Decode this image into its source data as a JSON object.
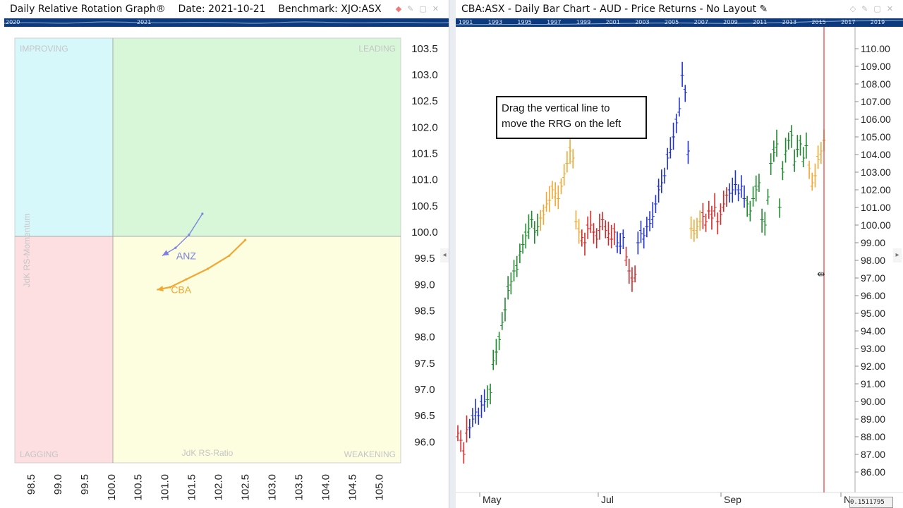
{
  "left": {
    "title": "Daily Relative Rotation Graph®",
    "date": "Date: 2021-10-21",
    "benchmark": "Benchmark: XJO:ASX",
    "timeline_labels": [
      "2020",
      "2021"
    ],
    "quadrants": {
      "improving": "IMPROVING",
      "leading": "LEADING",
      "lagging": "LAGGING",
      "weakening": "WEAKENING"
    },
    "y_axis_title": "JdK RS-Momentum",
    "x_axis_title": "JdK RS-Ratio",
    "colors": {
      "improving": "#d6f8fb",
      "leading": "#d8f7d8",
      "lagging": "#fddfe1",
      "weakening": "#fdfde0"
    }
  },
  "right": {
    "title": "CBA:ASX - Daily Bar Chart - AUD - Price Returns - No Layout",
    "timeline_labels": [
      "1991",
      "1993",
      "1995",
      "1997",
      "1999",
      "2001",
      "2003",
      "2005",
      "2007",
      "2009",
      "2011",
      "2013",
      "2015",
      "2017",
      "2019"
    ],
    "callout_line1": "Drag the vertical line to",
    "callout_line2": "move the RRG on the left",
    "status_value": "0.1511795",
    "colors": {
      "up": "#1f8a2e",
      "down": "#d12a2a",
      "improving": "#2233cc",
      "weakening": "#f0a832",
      "vline": "#e23a3a"
    }
  },
  "chart_data": [
    {
      "type": "scatter",
      "title": "",
      "xlabel": "JdK RS-Ratio",
      "ylabel": "JdK RS-Momentum",
      "xlim": [
        98.2,
        105.4
      ],
      "ylim": [
        95.6,
        103.7
      ],
      "x_ticks": [
        "98.5",
        "99.0",
        "99.5",
        "100.0",
        "100.5",
        "101.0",
        "101.5",
        "102.0",
        "102.5",
        "103.0",
        "103.5",
        "104.0",
        "104.5",
        "105.0"
      ],
      "y_ticks": [
        "96.0",
        "96.5",
        "97.0",
        "97.5",
        "98.0",
        "98.5",
        "99.0",
        "99.5",
        "100.0",
        "100.5",
        "101.0",
        "101.5",
        "102.0",
        "102.5",
        "103.0",
        "103.5"
      ],
      "series": [
        {
          "name": "ANZ",
          "color": "#7b82e0",
          "x": [
            101.7,
            101.45,
            101.2,
            100.95
          ],
          "y": [
            100.35,
            99.95,
            99.7,
            99.55
          ]
        },
        {
          "name": "CBA",
          "color": "#f0a832",
          "x": [
            102.5,
            102.2,
            101.8,
            101.4,
            101.1,
            100.85
          ],
          "y": [
            99.85,
            99.55,
            99.3,
            99.1,
            98.95,
            98.9
          ]
        }
      ],
      "grid": false
    },
    {
      "type": "bar",
      "title": "",
      "ylim": [
        85.6,
        110.6
      ],
      "y_ticks": [
        "86.00",
        "87.00",
        "88.00",
        "89.00",
        "90.00",
        "91.00",
        "92.00",
        "93.00",
        "94.00",
        "95.00",
        "96.00",
        "97.00",
        "98.00",
        "99.00",
        "100.00",
        "101.00",
        "102.00",
        "103.00",
        "104.00",
        "105.00",
        "106.00",
        "107.00",
        "108.00",
        "109.00",
        "110.00"
      ],
      "x_ticks": [
        "May",
        "Jul",
        "Sep",
        "N"
      ],
      "segments": [
        {
          "color": "down",
          "values": [
            88.2,
            87.8,
            87.0,
            88.4
          ]
        },
        {
          "color": "improving",
          "values": [
            88.5,
            89.0,
            89.4,
            89.2,
            89.8,
            90.0
          ]
        },
        {
          "color": "up",
          "values": [
            90.1,
            90.5,
            92.3,
            92.8,
            93.5,
            94.5,
            95.2,
            96.3,
            96.8,
            97.4,
            97.5,
            98.5,
            98.9,
            99.4,
            99.8,
            100.3,
            99.6,
            99.9
          ]
        },
        {
          "color": "weakening",
          "values": [
            100.4,
            100.6,
            101.2,
            101.4,
            102.0,
            101.8,
            101.5,
            102.2,
            102.9,
            103.5,
            104.2,
            103.8,
            100.2,
            99.6
          ]
        },
        {
          "color": "down",
          "values": [
            99.3,
            99.0,
            99.8,
            100.0,
            99.6,
            99.2,
            99.9,
            100.3,
            99.7,
            99.5,
            99.2,
            99.6
          ]
        },
        {
          "color": "improving",
          "values": [
            99.0,
            98.8,
            99.3
          ]
        },
        {
          "color": "down",
          "values": [
            98.2,
            97.4,
            96.8,
            97.2
          ]
        },
        {
          "color": "improving",
          "values": [
            99.0,
            99.5,
            99.4,
            99.9,
            100.1,
            100.5,
            101.2,
            102.0,
            102.4,
            102.8,
            103.8,
            104.3,
            105.0,
            105.8,
            106.6,
            108.5,
            107.5,
            104.2
          ]
        },
        {
          "color": "weakening",
          "values": [
            99.8,
            99.5,
            99.9,
            100.2
          ]
        },
        {
          "color": "down",
          "values": [
            100.5,
            100.2,
            100.8,
            100.4,
            101.0,
            100.2,
            100.6,
            101.2,
            101.7
          ]
        },
        {
          "color": "improving",
          "values": [
            101.8,
            102.0,
            102.3,
            101.8,
            102.2,
            101.5
          ]
        },
        {
          "color": "up",
          "values": [
            101.2,
            100.8,
            101.5,
            102.0,
            102.4,
            100.3,
            100.0,
            101.6,
            103.5,
            104.1,
            104.6,
            101.0,
            103.0,
            104.2,
            104.8,
            105.1,
            103.6,
            104.3,
            104.6,
            103.8,
            104.5
          ]
        },
        {
          "color": "weakening",
          "values": [
            103.2,
            102.4,
            102.8,
            103.7,
            104.2,
            104.8
          ]
        }
      ],
      "vertical_line_date": "Oct 2021"
    }
  ]
}
